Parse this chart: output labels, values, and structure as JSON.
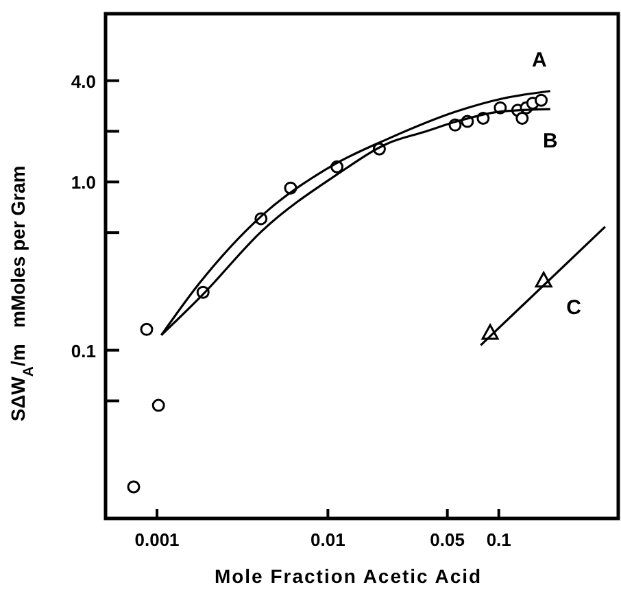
{
  "chart_data": {
    "type": "scatter",
    "xlabel": "Mole Fraction Acetic Acid",
    "ylabel": "SΔW$_{A}$/m   mMoles per Gram",
    "log": "xy",
    "xlim": [
      0.0005,
      0.5
    ],
    "ylim": [
      0.01,
      10
    ],
    "xticks": [
      0.001,
      0.01,
      0.05,
      0.1
    ],
    "yticks": [
      {
        "value": 4,
        "label": "4.0"
      },
      {
        "value": 2,
        "label": null
      },
      {
        "value": 1,
        "label": "1.0"
      },
      {
        "value": 0.5,
        "label": null
      },
      0.1,
      {
        "value": 0.05,
        "label": null
      }
    ],
    "grid": false,
    "series": [
      {
        "marker": "circle",
        "color": "#000000",
        "x": [
          0.00073,
          0.00087,
          0.00102,
          0.00186,
          0.00406,
          0.00605,
          0.0113,
          0.02,
          0.0555,
          0.0655,
          0.081,
          0.102,
          0.129,
          0.137,
          0.145,
          0.158,
          0.177
        ],
        "values": [
          0.0154,
          0.133,
          0.047,
          0.221,
          0.605,
          0.92,
          1.23,
          1.57,
          2.18,
          2.29,
          2.39,
          2.76,
          2.67,
          2.39,
          2.76,
          2.94,
          3.06
        ]
      },
      {
        "type": "line",
        "name": "A",
        "marker": "none",
        "line_style": "solid",
        "color": "#000000",
        "x": [
          0.00106,
          0.00177,
          0.0041,
          0.0112,
          0.0226,
          0.0568,
          0.105,
          0.2
        ],
        "values": [
          0.123,
          0.25,
          0.63,
          1.29,
          1.81,
          2.63,
          3.13,
          3.47
        ]
      },
      {
        "type": "line",
        "name": "B",
        "marker": "none",
        "line_style": "solid",
        "color": "#000000",
        "x": [
          0.00106,
          0.00186,
          0.0041,
          0.0112,
          0.0226,
          0.037,
          0.0568,
          0.105,
          0.2
        ],
        "values": [
          0.123,
          0.215,
          0.51,
          1.1,
          1.7,
          1.99,
          2.29,
          2.63,
          2.71
        ]
      },
      {
        "type": "scatter",
        "name": "C",
        "marker": "triangle",
        "color": "#000000",
        "x": [
          0.089,
          0.183
        ],
        "values": [
          0.126,
          0.258
        ]
      },
      {
        "type": "line",
        "marker": "none",
        "line_style": "solid",
        "color": "#000000",
        "x": [
          0.0784,
          0.419
        ],
        "values": [
          0.107,
          0.542
        ]
      }
    ]
  }
}
